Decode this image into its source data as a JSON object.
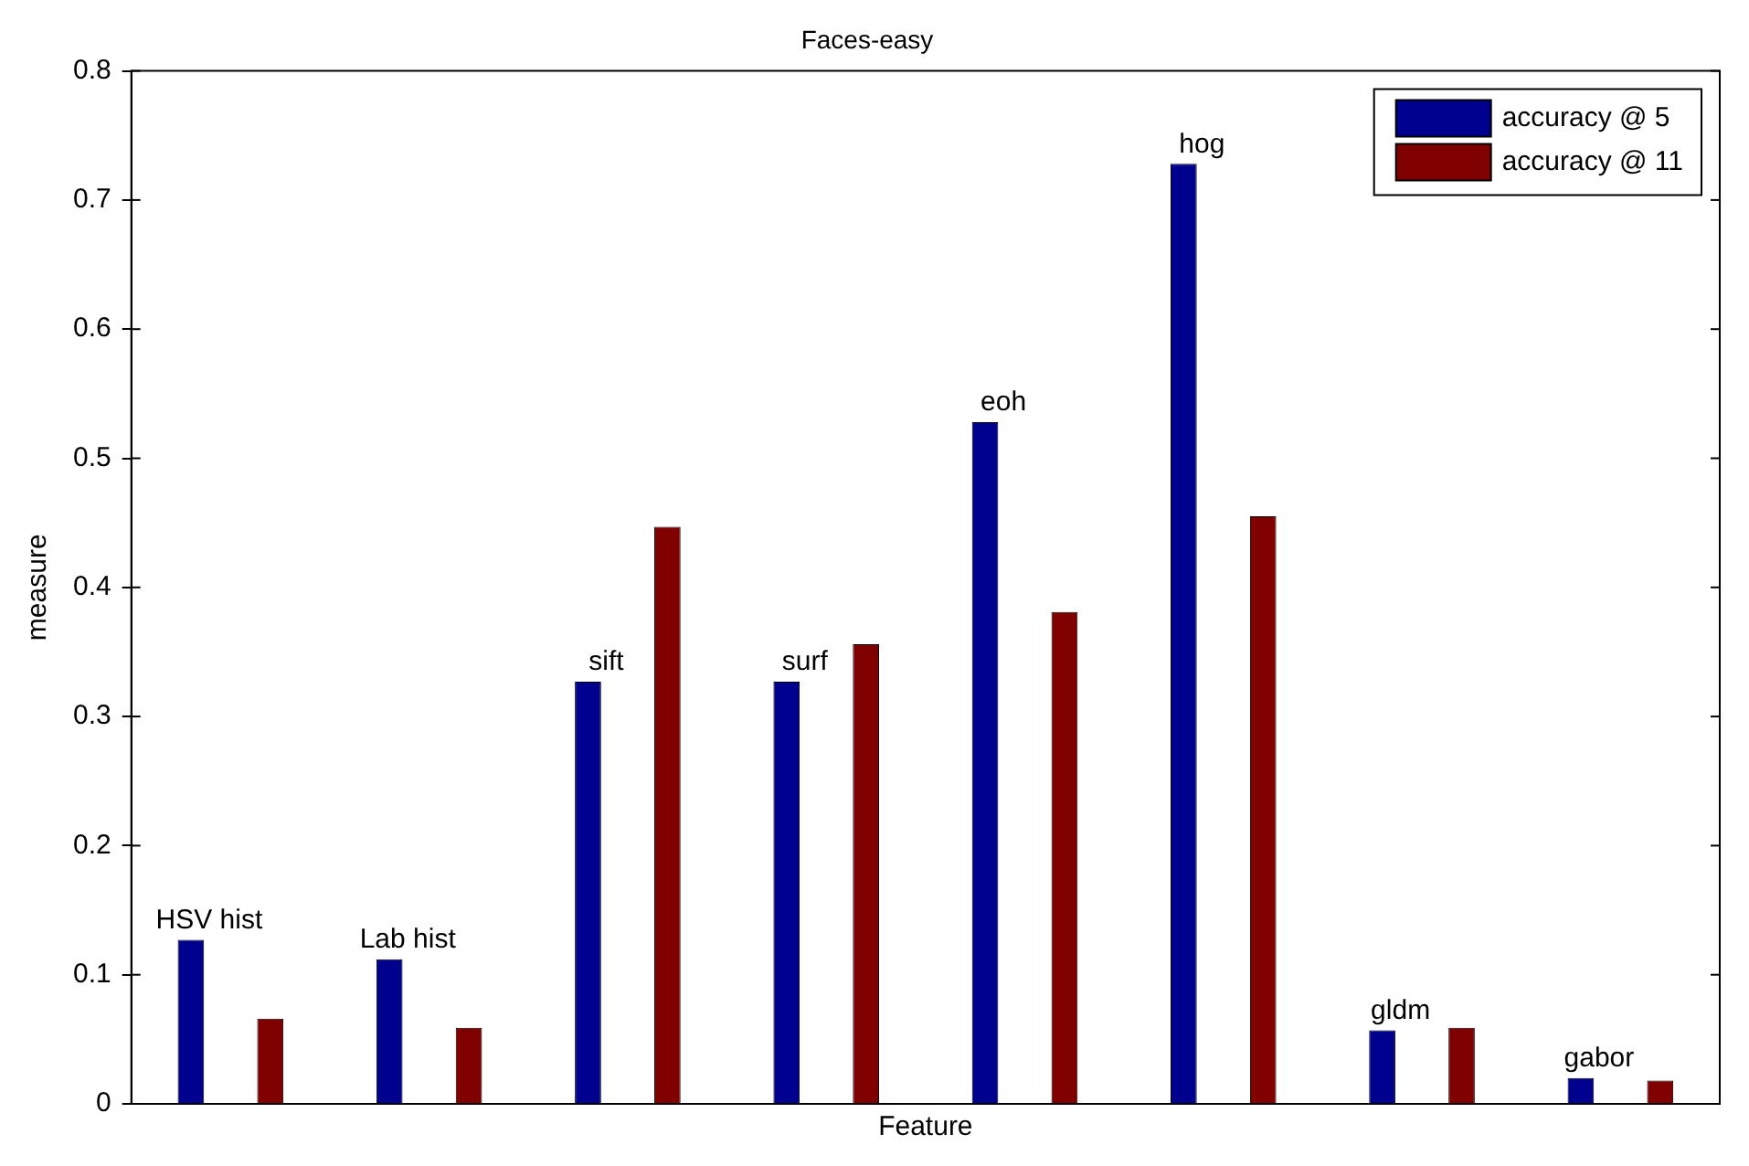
{
  "chart_data": {
    "type": "bar",
    "title": "Faces-easy",
    "xlabel": "Feature",
    "ylabel": "measure",
    "categories": [
      "HSV hist",
      "Lab hist",
      "sift",
      "surf",
      "eoh",
      "hog",
      "gldm",
      "gabor"
    ],
    "series": [
      {
        "name": "accuracy @ 5",
        "color": "#00008f",
        "values": [
          0.127,
          0.112,
          0.327,
          0.327,
          0.528,
          0.728,
          0.057,
          0.02
        ]
      },
      {
        "name": "accuracy @ 11",
        "color": "#800000",
        "values": [
          0.066,
          0.059,
          0.447,
          0.356,
          0.381,
          0.455,
          0.059,
          0.018
        ]
      }
    ],
    "ylim": [
      0,
      0.8
    ],
    "yticks": [
      0,
      0.1,
      0.2,
      0.3,
      0.4,
      0.5,
      0.6,
      0.7,
      0.8
    ],
    "grid": false,
    "legend": "top right",
    "tick_labels": "y"
  }
}
